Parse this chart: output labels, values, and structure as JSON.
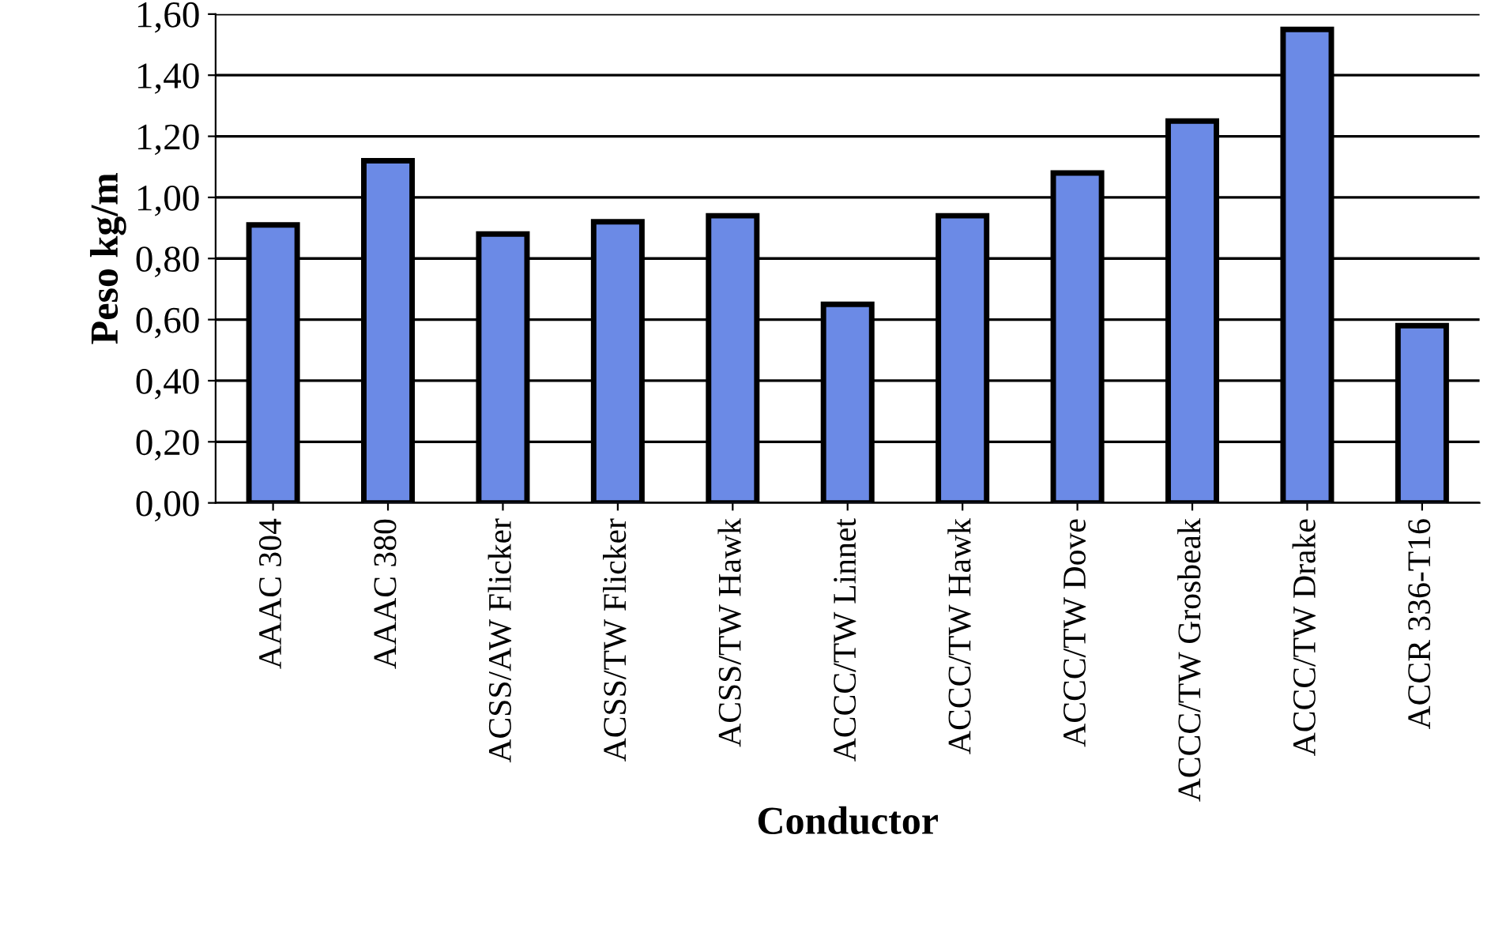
{
  "chart_data": {
    "type": "bar",
    "xlabel": "Conductor",
    "ylabel": "Peso kg/m",
    "categories": [
      "AAAC 304",
      "AAAC 380",
      "ACSS/AW Flicker",
      "ACSS/TW Flicker",
      "ACSS/TW Hawk",
      "ACCC/TW Linnet",
      "ACCC/TW Hawk",
      "ACCC/TW Dove",
      "ACCC/TW Grosbeak",
      "ACCC/TW Drake",
      "ACCR 336-T16"
    ],
    "values": [
      0.91,
      1.12,
      0.88,
      0.92,
      0.94,
      0.65,
      0.94,
      1.08,
      1.25,
      1.55,
      0.58
    ],
    "color": "#6b8ae6",
    "ylim": [
      0,
      1.6
    ],
    "yticks": [
      {
        "value": 0,
        "label": "0,00"
      },
      {
        "value": 0.2,
        "label": "0,20"
      },
      {
        "value": 0.4,
        "label": "0,40"
      },
      {
        "value": 0.6,
        "label": "0,60"
      },
      {
        "value": 0.8,
        "label": "0,80"
      },
      {
        "value": 1.0,
        "label": "1,00"
      },
      {
        "value": 1.2,
        "label": "1,20"
      },
      {
        "value": 1.4,
        "label": "1,40"
      },
      {
        "value": 1.6,
        "label": "1,60"
      }
    ],
    "grid": "y",
    "legend": false
  }
}
